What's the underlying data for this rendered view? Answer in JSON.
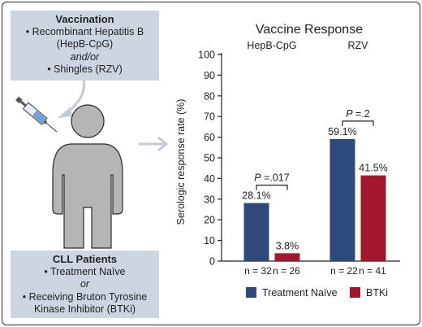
{
  "vaccination_box": {
    "title": "Vaccination",
    "line1": "• Recombinant Hepatitis B",
    "line2": "(HepB-CpG)",
    "line3": "and/or",
    "line4": "• Shingles (RZV)"
  },
  "patients_box": {
    "title": "CLL Patients",
    "line1": "• Treatment Naïve",
    "line2": "or",
    "line3": "• Receiving Bruton Tyrosine",
    "line4": "Kinase Inhibitor (BTKi)"
  },
  "colors": {
    "treatment_naive": "#2e4a7d",
    "btki": "#a4182e",
    "box_fill": "#cdd5e0",
    "figure_fill": "#b5b5b8"
  },
  "chart_data": {
    "type": "bar",
    "title": "Vaccine Response",
    "ylabel": "Serologic response rate (%)",
    "xlabel": "",
    "ylim": [
      0,
      100
    ],
    "yticks": [
      0,
      10,
      20,
      30,
      40,
      50,
      60,
      70,
      80,
      90,
      100
    ],
    "grid": false,
    "legend_position": "bottom",
    "categories": [
      "HepB-CpG",
      "RZV"
    ],
    "series": [
      {
        "name": "Treatment Naïve",
        "values": [
          28.1,
          59.1
        ],
        "labels": [
          "28.1%",
          "59.1%"
        ],
        "n": [
          "n = 32",
          "n = 22"
        ],
        "color": "#2e4a7d"
      },
      {
        "name": "BTKi",
        "values": [
          3.8,
          41.5
        ],
        "labels": [
          "3.8%",
          "41.5%"
        ],
        "n": [
          "n = 26",
          "n = 41"
        ],
        "color": "#a4182e"
      }
    ],
    "annotations": [
      {
        "p_prefix": "P",
        "p_value": " =.017"
      },
      {
        "p_prefix": "P",
        "p_value": " =.2"
      }
    ]
  }
}
